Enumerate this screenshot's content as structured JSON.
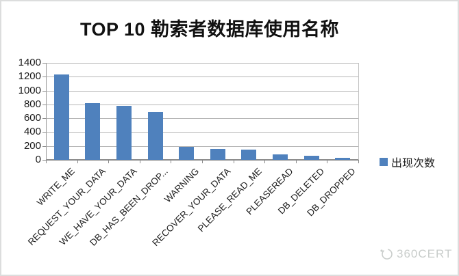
{
  "frame": {
    "background": "#ffffff",
    "border_color": "#dcdddd"
  },
  "chart_data": {
    "type": "bar",
    "title": "TOP 10 勒索者数据库使用名称",
    "categories": [
      "WRITE_ME",
      "REQUEST_YOUR_DATA",
      "WE_HAVE_YOUR_DATA",
      "DB_HAS_BEEN_DROP...",
      "WARNING",
      "RECOVER_YOUR_DATA",
      "PLEASE_READ_ME",
      "PLEASEREAD",
      "DB_DELETED",
      "DB_DROPPED"
    ],
    "series": [
      {
        "name": "出现次数",
        "values": [
          1230,
          820,
          780,
          690,
          185,
          155,
          150,
          75,
          55,
          30
        ]
      }
    ],
    "xlabel": "",
    "ylabel": "",
    "ylim": [
      0,
      1400
    ],
    "yticks": [
      0,
      200,
      400,
      600,
      800,
      1000,
      1200,
      1400
    ],
    "grid": true,
    "legend_position": "right",
    "x_label_rotation_deg": 45,
    "colors": {
      "bar": "#4f81bd",
      "gridline": "#b4b4b4",
      "axis": "#8a8a8a",
      "text": "#1a1a1a"
    }
  },
  "watermark": {
    "label": "360CERT",
    "color": "#c9cdcb"
  }
}
